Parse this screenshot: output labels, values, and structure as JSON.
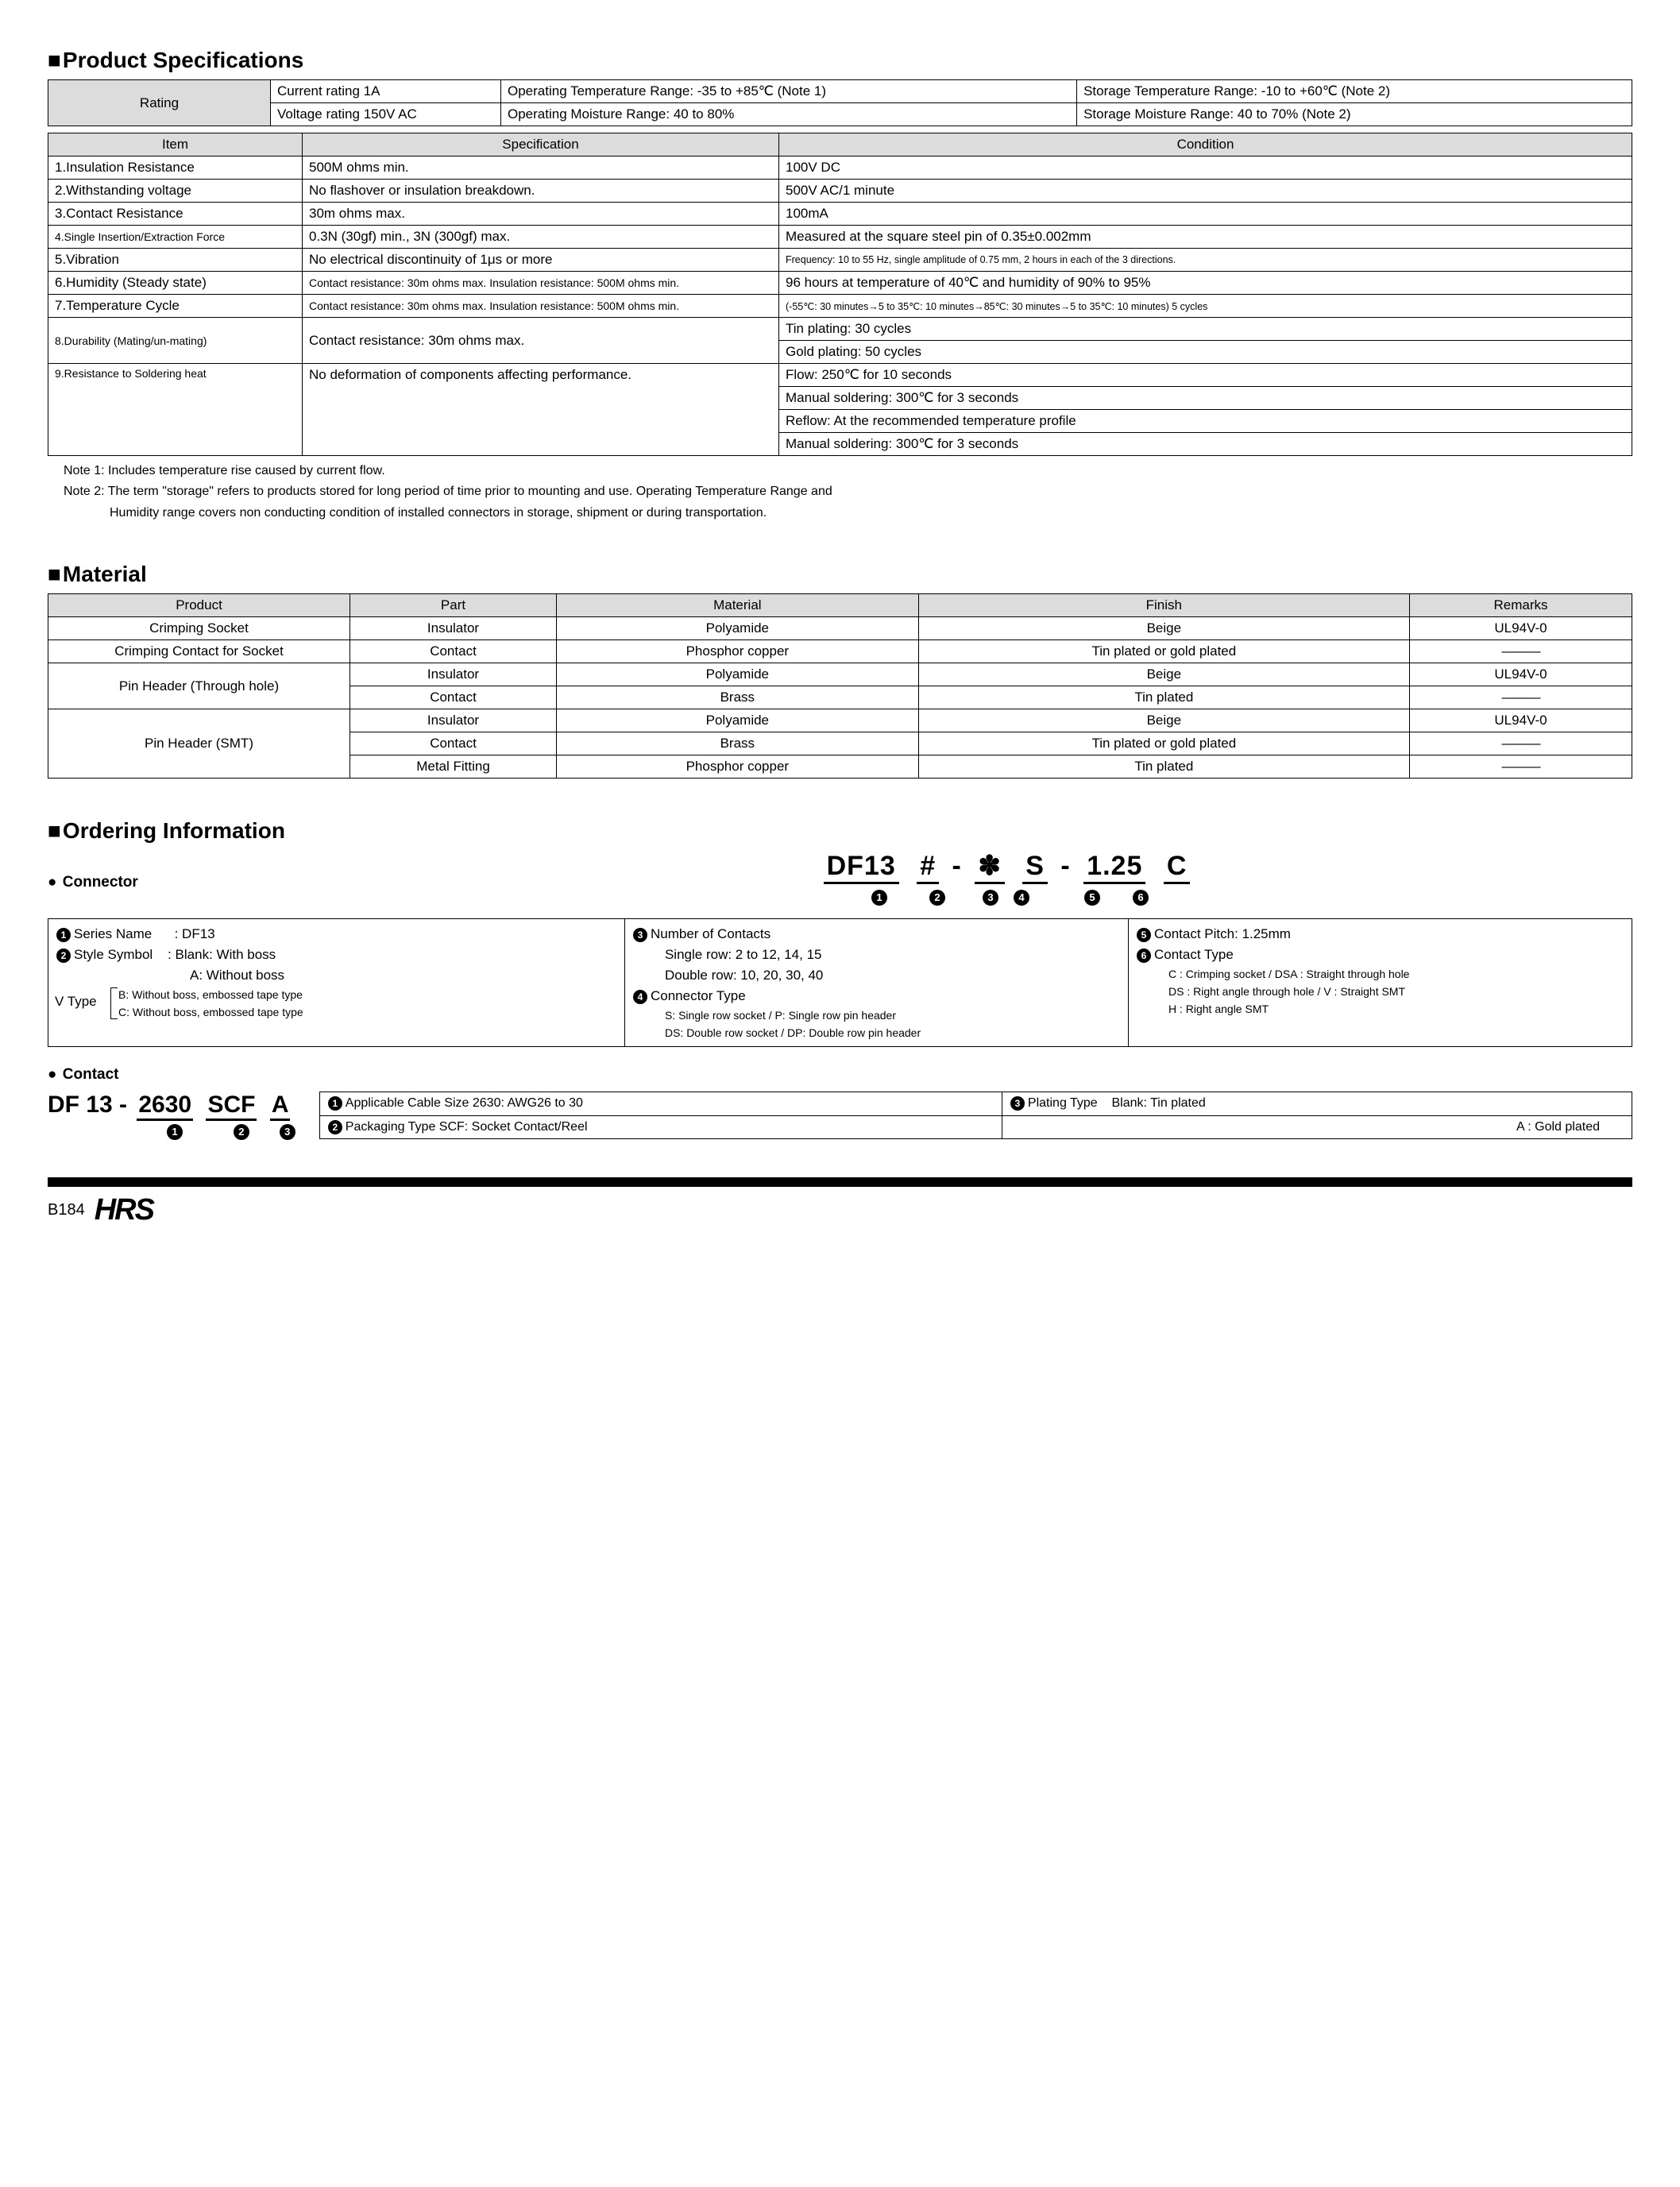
{
  "colors": {
    "header_bg": "#dcdcdc",
    "border": "#000000",
    "text": "#000000",
    "bg": "#ffffff"
  },
  "sections": {
    "spec_title": "Product Specifications",
    "material_title": "Material",
    "ordering_title": "Ordering Information"
  },
  "rating": {
    "label": "Rating",
    "r1c1": "Current rating  1A",
    "r1c2": "Operating Temperature Range: -35 to +85℃ (Note 1)",
    "r1c3": "Storage Temperature Range: -10 to +60℃ (Note 2)",
    "r2c1": "Voltage rating  150V AC",
    "r2c2": "Operating Moisture Range: 40 to 80%",
    "r2c3": "Storage Moisture Range: 40 to 70%        (Note 2)"
  },
  "spec_headers": {
    "item": "Item",
    "spec": "Specification",
    "cond": "Condition"
  },
  "spec_rows": [
    {
      "item": "1.Insulation Resistance",
      "spec": "500M ohms min.",
      "cond": "100V DC"
    },
    {
      "item": "2.Withstanding voltage",
      "spec": "No flashover or insulation breakdown.",
      "cond": "500V AC/1 minute"
    },
    {
      "item": "3.Contact Resistance",
      "spec": "30m ohms max.",
      "cond": "100mA"
    },
    {
      "item": "4.Single Insertion/Extraction Force",
      "spec": "0.3N (30gf) min., 3N (300gf) max.",
      "cond": "Measured at the square steel pin of 0.35±0.002mm",
      "item_small": true
    },
    {
      "item": "5.Vibration",
      "spec": "No electrical discontinuity of 1μs or more",
      "cond": "Frequency: 10 to 55 Hz, single amplitude of 0.75 mm, 2 hours in each of the 3 directions.",
      "cond_small": true
    },
    {
      "item": "6.Humidity (Steady state)",
      "spec": "Contact resistance: 30m ohms max. Insulation resistance: 500M ohms min.",
      "cond": "96 hours at temperature of 40℃ and humidity of 90% to 95%",
      "spec_small": true
    },
    {
      "item": "7.Temperature Cycle",
      "spec": "Contact resistance: 30m ohms max. Insulation resistance: 500M ohms min.",
      "cond": "(-55℃: 30 minutes→5 to 35℃: 10 minutes→85℃: 30 minutes→5 to 35℃: 10 minutes) 5 cycles",
      "spec_small": true,
      "cond_small": true
    }
  ],
  "spec_durability": {
    "item": "8.Durability (Mating/un-mating)",
    "spec": "Contact resistance: 30m ohms max.",
    "cond1": "Tin plating: 30 cycles",
    "cond2": "Gold plating: 50 cycles"
  },
  "spec_solder": {
    "item": "9.Resistance to Soldering heat",
    "spec": "No deformation of components affecting performance.",
    "cond1": "Flow: 250℃ for 10 seconds",
    "cond2": "Manual soldering: 300℃ for 3 seconds",
    "cond3": "Reflow: At the recommended temperature profile",
    "cond4": "Manual soldering: 300℃ for 3 seconds"
  },
  "notes": {
    "n1": "Note 1: Includes temperature rise caused by current flow.",
    "n2": "Note 2: The term \"storage\" refers to products stored for long period of time prior to mounting and use. Operating Temperature Range and",
    "n2b": "Humidity range covers non conducting condition of installed connectors in storage, shipment or during transportation."
  },
  "material_headers": {
    "product": "Product",
    "part": "Part",
    "material": "Material",
    "finish": "Finish",
    "remarks": "Remarks"
  },
  "material": {
    "r1": {
      "product": "Crimping Socket",
      "part": "Insulator",
      "mat": "Polyamide",
      "fin": "Beige",
      "rem": "UL94V-0"
    },
    "r2": {
      "product": "Crimping Contact for Socket",
      "part": "Contact",
      "mat": "Phosphor copper",
      "fin": "Tin plated or gold plated",
      "rem": "―――"
    },
    "r3": {
      "product": "Pin Header (Through hole)",
      "part": "Insulator",
      "mat": "Polyamide",
      "fin": "Beige",
      "rem": "UL94V-0"
    },
    "r4": {
      "part": "Contact",
      "mat": "Brass",
      "fin": "Tin plated",
      "rem": "―――"
    },
    "r5": {
      "product": "Pin Header (SMT)",
      "part": "Insulator",
      "mat": "Polyamide",
      "fin": "Beige",
      "rem": "UL94V-0"
    },
    "r6": {
      "part": "Contact",
      "mat": "Brass",
      "fin": "Tin plated or gold plated",
      "rem": "―――"
    },
    "r7": {
      "part": "Metal Fitting",
      "mat": "Phosphor copper",
      "fin": "Tin plated",
      "rem": "―――"
    }
  },
  "connector": {
    "heading": "Connector",
    "pn": {
      "p1": "DF13",
      "p2": "#",
      "p3": "✽",
      "p4": "S",
      "p5": "1.25",
      "p6": "C"
    },
    "col1": {
      "l1a": "Series Name",
      "l1b": ": DF13",
      "l2a": "Style Symbol",
      "l2b": ": Blank: With boss",
      "l3": "A: Without boss",
      "vtype": "V Type",
      "l4": "B: Without boss, embossed tape type",
      "l5": "C: Without boss, embossed tape type"
    },
    "col2": {
      "l1": "Number of Contacts",
      "l2": "Single row: 2 to 12, 14, 15",
      "l3": "Double row: 10, 20, 30, 40",
      "l4": "Connector Type",
      "l5": "S: Single row socket / P: Single row pin header",
      "l6": "DS: Double row socket / DP: Double row pin header"
    },
    "col3": {
      "l1": "Contact Pitch: 1.25mm",
      "l2": "Contact Type",
      "l3": "C : Crimping socket / DSA : Straight through hole",
      "l4": "DS : Right angle through hole / V : Straight SMT",
      "l5": "H : Right angle SMT"
    }
  },
  "contact": {
    "heading": "Contact",
    "pn": {
      "p1": "DF 13",
      "p2": "2630",
      "p3": "SCF",
      "p4": "A"
    },
    "t1": "Applicable Cable Size  2630: AWG26 to 30",
    "t2": "Packaging Type  SCF: Socket Contact/Reel",
    "t3a": "Plating Type",
    "t3b": "Blank: Tin plated",
    "t4": "A   : Gold plated"
  },
  "footer": {
    "page": "B184",
    "logo": "HRS"
  }
}
